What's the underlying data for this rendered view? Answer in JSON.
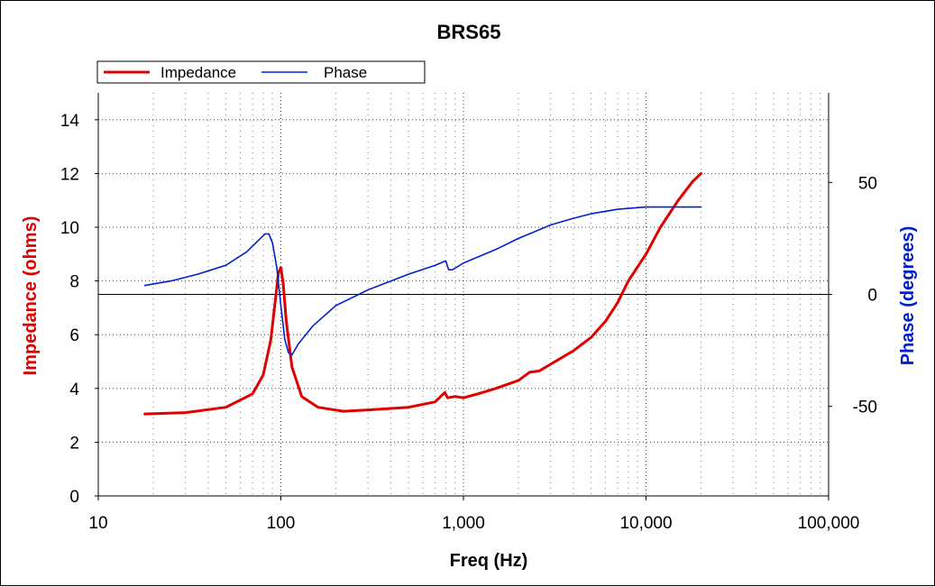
{
  "chart_data": {
    "type": "line",
    "title": "BRS65",
    "xlabel": "Freq (Hz)",
    "ylabel": "Impedance (ohms)",
    "y2label": "Phase (degrees)",
    "x_scale": "log",
    "xlim": [
      10,
      100000
    ],
    "ylim": [
      0,
      15
    ],
    "y2lim": [
      -90,
      90
    ],
    "grid": true,
    "legend_position": "top-left",
    "x_ticks": [
      {
        "value": 10,
        "label": "10"
      },
      {
        "value": 100,
        "label": "100"
      },
      {
        "value": 1000,
        "label": "1,000"
      },
      {
        "value": 10000,
        "label": "10,000"
      },
      {
        "value": 100000,
        "label": "100,000"
      }
    ],
    "y_ticks": [
      {
        "value": 0,
        "label": "0"
      },
      {
        "value": 2,
        "label": "2"
      },
      {
        "value": 4,
        "label": "4"
      },
      {
        "value": 6,
        "label": "6"
      },
      {
        "value": 8,
        "label": "8"
      },
      {
        "value": 10,
        "label": "10"
      },
      {
        "value": 12,
        "label": "12"
      },
      {
        "value": 14,
        "label": "14"
      }
    ],
    "y2_ticks": [
      {
        "value": 50,
        "label": "50"
      },
      {
        "value": 0,
        "label": "0"
      },
      {
        "value": -50,
        "label": "-50"
      }
    ],
    "series": [
      {
        "name": "Impedance",
        "axis": "left",
        "color": "#e00000",
        "x": [
          18,
          30,
          50,
          70,
          80,
          88,
          93,
          97,
          100,
          103,
          107,
          115,
          130,
          160,
          220,
          300,
          500,
          700,
          790,
          820,
          900,
          1000,
          1200,
          1500,
          2000,
          2300,
          2600,
          3000,
          4000,
          5000,
          6000,
          7000,
          8000,
          10000,
          12000,
          15000,
          18000,
          20000
        ],
        "y": [
          3.05,
          3.1,
          3.3,
          3.8,
          4.5,
          5.8,
          7.2,
          8.3,
          8.5,
          7.9,
          6.5,
          4.8,
          3.7,
          3.3,
          3.15,
          3.2,
          3.3,
          3.5,
          3.85,
          3.65,
          3.7,
          3.65,
          3.8,
          4.0,
          4.3,
          4.6,
          4.65,
          4.9,
          5.4,
          5.9,
          6.5,
          7.2,
          8.0,
          9.0,
          10.0,
          11.0,
          11.7,
          12.0
        ]
      },
      {
        "name": "Phase",
        "axis": "right",
        "color": "#0020d0",
        "x": [
          18,
          25,
          35,
          50,
          65,
          75,
          82,
          86,
          90,
          95,
          100,
          105,
          110,
          115,
          125,
          150,
          200,
          300,
          500,
          700,
          800,
          830,
          870,
          1000,
          1500,
          2000,
          2300,
          3000,
          4000,
          5000,
          7000,
          10000,
          15000,
          20000
        ],
        "y": [
          4,
          6,
          9,
          13,
          19,
          24,
          27,
          27,
          23,
          12,
          -5,
          -20,
          -26,
          -27,
          -22,
          -14,
          -5,
          2,
          9,
          13,
          15,
          11,
          11,
          14,
          20,
          25,
          27,
          31,
          34,
          36,
          38,
          39,
          39,
          39
        ]
      }
    ]
  }
}
